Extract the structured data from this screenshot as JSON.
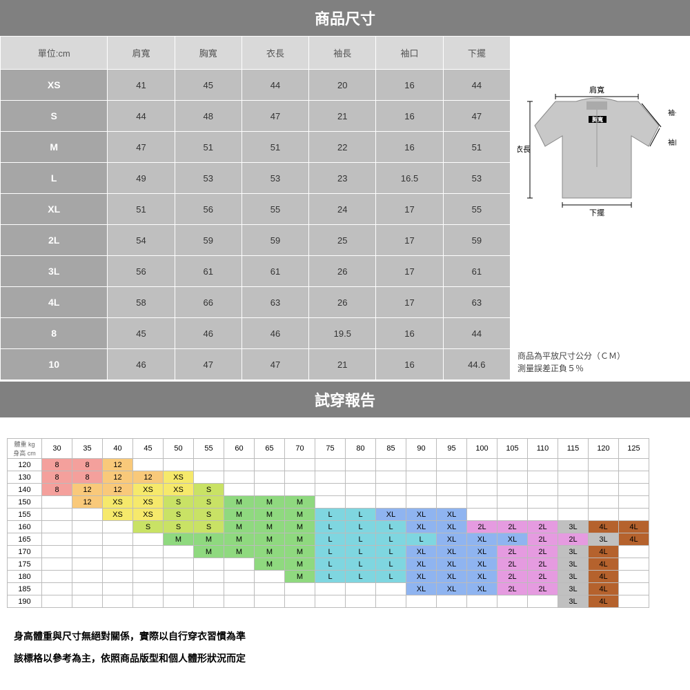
{
  "title1": "商品尺寸",
  "title2": "試穿報告",
  "sizeTable": {
    "headers": [
      "單位:cm",
      "肩寬",
      "胸寬",
      "衣長",
      "袖長",
      "袖口",
      "下擺"
    ],
    "rows": [
      [
        "XS",
        "41",
        "45",
        "44",
        "20",
        "16",
        "44"
      ],
      [
        "S",
        "44",
        "48",
        "47",
        "21",
        "16",
        "47"
      ],
      [
        "M",
        "47",
        "51",
        "51",
        "22",
        "16",
        "51"
      ],
      [
        "L",
        "49",
        "53",
        "53",
        "23",
        "16.5",
        "53"
      ],
      [
        "XL",
        "51",
        "56",
        "55",
        "24",
        "17",
        "55"
      ],
      [
        "2L",
        "54",
        "59",
        "59",
        "25",
        "17",
        "59"
      ],
      [
        "3L",
        "56",
        "61",
        "61",
        "26",
        "17",
        "61"
      ],
      [
        "4L",
        "58",
        "66",
        "63",
        "26",
        "17",
        "63"
      ],
      [
        "8",
        "45",
        "46",
        "46",
        "19.5",
        "16",
        "44"
      ],
      [
        "10",
        "46",
        "47",
        "47",
        "21",
        "16",
        "44.6"
      ]
    ]
  },
  "diagram": {
    "labels": {
      "shoulder": "肩寬",
      "chest": "胸寬",
      "length": "衣長",
      "sleeve": "袖長",
      "cuff": "袖口",
      "hem": "下擺"
    }
  },
  "note": "商品為平放尺寸公分（ＣＭ）\n測量誤差正負５％",
  "fitTable": {
    "axisWeight": "體重 kg",
    "axisHeight": "身高 cm",
    "weights": [
      "30",
      "35",
      "40",
      "45",
      "50",
      "55",
      "60",
      "65",
      "70",
      "75",
      "80",
      "85",
      "90",
      "95",
      "100",
      "105",
      "110",
      "115",
      "120",
      "125"
    ],
    "heights": [
      "120",
      "130",
      "140",
      "150",
      "155",
      "160",
      "165",
      "170",
      "175",
      "180",
      "185",
      "190"
    ],
    "palette": {
      "8": "#f4a09c",
      "12": "#f9c97a",
      "XS": "#f6e96b",
      "S": "#c9e265",
      "M": "#8fd97f",
      "L": "#7fd6e0",
      "XL": "#8fb4f0",
      "2L": "#e59be0",
      "3L": "#c0c0c0",
      "4L": "#b5622d",
      "": "#ffffff"
    },
    "grid": [
      [
        "8",
        "8",
        "12",
        "",
        "",
        "",
        "",
        "",
        "",
        "",
        "",
        "",
        "",
        "",
        "",
        "",
        "",
        "",
        "",
        ""
      ],
      [
        "8",
        "8",
        "12",
        "12",
        "XS",
        "",
        "",
        "",
        "",
        "",
        "",
        "",
        "",
        "",
        "",
        "",
        "",
        "",
        "",
        ""
      ],
      [
        "8",
        "12",
        "12",
        "XS",
        "XS",
        "S",
        "",
        "",
        "",
        "",
        "",
        "",
        "",
        "",
        "",
        "",
        "",
        "",
        "",
        ""
      ],
      [
        "",
        "12",
        "XS",
        "XS",
        "S",
        "S",
        "M",
        "M",
        "M",
        "",
        "",
        "",
        "",
        "",
        "",
        "",
        "",
        "",
        "",
        ""
      ],
      [
        "",
        "",
        "XS",
        "XS",
        "S",
        "S",
        "M",
        "M",
        "M",
        "L",
        "L",
        "XL",
        "XL",
        "XL",
        "",
        "",
        "",
        "",
        "",
        ""
      ],
      [
        "",
        "",
        "",
        "S",
        "S",
        "S",
        "M",
        "M",
        "M",
        "L",
        "L",
        "L",
        "XL",
        "XL",
        "2L",
        "2L",
        "2L",
        "3L",
        "4L",
        "4L"
      ],
      [
        "",
        "",
        "",
        "",
        "M",
        "M",
        "M",
        "M",
        "M",
        "L",
        "L",
        "L",
        "L",
        "XL",
        "XL",
        "XL",
        "2L",
        "2L",
        "3L",
        "4L"
      ],
      [
        "",
        "",
        "",
        "",
        "",
        "M",
        "M",
        "M",
        "M",
        "L",
        "L",
        "L",
        "XL",
        "XL",
        "XL",
        "2L",
        "2L",
        "3L",
        "4L",
        ""
      ],
      [
        "",
        "",
        "",
        "",
        "",
        "",
        "",
        "M",
        "M",
        "L",
        "L",
        "L",
        "XL",
        "XL",
        "XL",
        "2L",
        "2L",
        "3L",
        "4L",
        ""
      ],
      [
        "",
        "",
        "",
        "",
        "",
        "",
        "",
        "",
        "M",
        "L",
        "L",
        "L",
        "XL",
        "XL",
        "XL",
        "2L",
        "2L",
        "3L",
        "4L",
        ""
      ],
      [
        "",
        "",
        "",
        "",
        "",
        "",
        "",
        "",
        "",
        "",
        "",
        "",
        "XL",
        "XL",
        "XL",
        "2L",
        "2L",
        "3L",
        "4L",
        ""
      ],
      [
        "",
        "",
        "",
        "",
        "",
        "",
        "",
        "",
        "",
        "",
        "",
        "",
        "",
        "",
        "",
        "",
        "",
        "3L",
        "4L",
        ""
      ]
    ]
  },
  "disclaimer1": "身高體重與尺寸無絕對關係，實際以自行穿衣習慣為準",
  "disclaimer2": "該標格以參考為主，依照商品版型和個人體形狀況而定"
}
